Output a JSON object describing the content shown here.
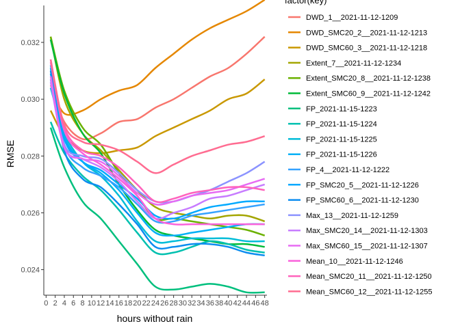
{
  "chart_data": {
    "type": "line",
    "xlabel": "hours without rain",
    "ylabel": "RMSE",
    "legend_title": "factor(key)",
    "legend_position": "right",
    "grid": false,
    "xlim": [
      -0.5,
      48.5
    ],
    "ylim": [
      0.0231,
      0.0333
    ],
    "x_ticks": [
      0,
      2,
      4,
      6,
      8,
      10,
      12,
      14,
      16,
      18,
      20,
      22,
      24,
      26,
      28,
      30,
      32,
      34,
      36,
      38,
      40,
      42,
      44,
      46,
      48
    ],
    "y_ticks": [
      0.024,
      0.026,
      0.028,
      0.03,
      0.032
    ],
    "y_tick_labels": [
      "0.024",
      "0.026",
      "0.028",
      "0.030",
      "0.032"
    ],
    "knots_x": [
      1,
      4,
      8,
      12,
      16,
      20,
      24,
      28,
      32,
      36,
      40,
      44,
      48
    ],
    "series": [
      {
        "name": "DWD_1__2021-11-12-1209",
        "color": "#F8766D",
        "values": [
          0.0305,
          0.0292,
          0.0286,
          0.0288,
          0.0292,
          0.0293,
          0.0297,
          0.03,
          0.0304,
          0.0308,
          0.0311,
          0.0316,
          0.0322
        ]
      },
      {
        "name": "DWD_SMC20_2__2021-11-12-1213",
        "color": "#E58700",
        "values": [
          0.0304,
          0.0295,
          0.0296,
          0.03,
          0.0303,
          0.0305,
          0.0311,
          0.0316,
          0.0321,
          0.0325,
          0.0328,
          0.0331,
          0.0335
        ]
      },
      {
        "name": "DWD_SMC60_3__2021-11-12-1218",
        "color": "#C99800",
        "values": [
          0.0296,
          0.0287,
          0.0282,
          0.0281,
          0.0282,
          0.0283,
          0.0287,
          0.029,
          0.0293,
          0.0296,
          0.03,
          0.0302,
          0.0307
        ]
      },
      {
        "name": "Extent_7__2021-11-12-1234",
        "color": "#A3A500",
        "values": [
          0.0322,
          0.03,
          0.0288,
          0.0282,
          0.0275,
          0.0268,
          0.0262,
          0.026,
          0.0259,
          0.0258,
          0.0259,
          0.0259,
          0.0257
        ]
      },
      {
        "name": "Extent_SMC20_8__2021-11-12-1238",
        "color": "#6BB100",
        "values": [
          0.0322,
          0.0303,
          0.029,
          0.0284,
          0.0274,
          0.0266,
          0.0258,
          0.0258,
          0.0257,
          0.0256,
          0.0255,
          0.0254,
          0.0252
        ]
      },
      {
        "name": "Extent_SMC60_9__2021-11-12-1242",
        "color": "#00BA38",
        "values": [
          0.0321,
          0.0302,
          0.0288,
          0.0281,
          0.027,
          0.0261,
          0.0254,
          0.0252,
          0.0251,
          0.025,
          0.0249,
          0.0249,
          0.0248
        ]
      },
      {
        "name": "FP_2021-11-15-1223",
        "color": "#00BF7D",
        "values": [
          0.029,
          0.0276,
          0.0264,
          0.0258,
          0.025,
          0.0242,
          0.0234,
          0.0233,
          0.0234,
          0.0235,
          0.0234,
          0.0232,
          0.0232
        ]
      },
      {
        "name": "FP_2021-11-15-1224",
        "color": "#00C0AF",
        "values": [
          0.0292,
          0.0281,
          0.0273,
          0.0268,
          0.0261,
          0.0253,
          0.0246,
          0.0246,
          0.0248,
          0.025,
          0.0249,
          0.0247,
          0.0246
        ]
      },
      {
        "name": "FP_2021-11-15-1225",
        "color": "#00BCD8",
        "values": [
          0.0304,
          0.0288,
          0.0278,
          0.0273,
          0.0266,
          0.0257,
          0.025,
          0.025,
          0.0251,
          0.0251,
          0.0251,
          0.025,
          0.025
        ]
      },
      {
        "name": "FP_2021-11-15-1226",
        "color": "#00B0F6",
        "values": [
          0.0309,
          0.0287,
          0.0278,
          0.0274,
          0.0268,
          0.026,
          0.0253,
          0.0252,
          0.0253,
          0.0254,
          0.0255,
          0.0256,
          0.0256
        ]
      },
      {
        "name": "FP_4__2021-11-12-1222",
        "color": "#35A2FF",
        "values": [
          0.0312,
          0.0284,
          0.0276,
          0.0273,
          0.0269,
          0.0263,
          0.0257,
          0.0257,
          0.0259,
          0.026,
          0.0261,
          0.0262,
          0.0263
        ]
      },
      {
        "name": "FP_SMC20_5__2021-11-12-1226",
        "color": "#00A9FF",
        "values": [
          0.0311,
          0.0286,
          0.0278,
          0.0275,
          0.027,
          0.0265,
          0.0259,
          0.0258,
          0.026,
          0.0262,
          0.0263,
          0.0264,
          0.0264
        ]
      },
      {
        "name": "FP_SMC60_6__2021-11-12-1230",
        "color": "#0C8DF0",
        "values": [
          0.031,
          0.0282,
          0.0272,
          0.0269,
          0.0263,
          0.0256,
          0.0248,
          0.0248,
          0.0249,
          0.0249,
          0.0248,
          0.0246,
          0.0245
        ]
      },
      {
        "name": "Max_13__2021-11-12-1259",
        "color": "#8B93FF",
        "values": [
          0.0307,
          0.0284,
          0.028,
          0.0279,
          0.0274,
          0.0268,
          0.0264,
          0.0264,
          0.0266,
          0.0268,
          0.0271,
          0.0274,
          0.0278
        ]
      },
      {
        "name": "Max_SMC20_14__2021-11-12-1303",
        "color": "#C77CFF",
        "values": [
          0.0306,
          0.0283,
          0.0279,
          0.0276,
          0.0271,
          0.0264,
          0.0258,
          0.026,
          0.0262,
          0.0265,
          0.0266,
          0.0268,
          0.027
        ]
      },
      {
        "name": "Max_SMC60_15__2021-11-12-1307",
        "color": "#E76BF3",
        "values": [
          0.0308,
          0.0283,
          0.0279,
          0.0278,
          0.0273,
          0.0267,
          0.0263,
          0.0264,
          0.0266,
          0.0267,
          0.0268,
          0.027,
          0.0272
        ]
      },
      {
        "name": "Mean_10__2021-11-12-1246",
        "color": "#FA62DB",
        "values": [
          0.0314,
          0.0289,
          0.0281,
          0.0277,
          0.0272,
          0.0266,
          0.0258,
          0.0256,
          0.0256,
          0.0256,
          0.0256,
          0.0256,
          0.0256
        ]
      },
      {
        "name": "Mean_SMC20_11__2021-11-12-1250",
        "color": "#FF62BC",
        "values": [
          0.0313,
          0.029,
          0.0282,
          0.028,
          0.0276,
          0.027,
          0.0264,
          0.0265,
          0.0267,
          0.0268,
          0.0269,
          0.0269,
          0.0268
        ]
      },
      {
        "name": "Mean_SMC60_12__2021-11-12-1255",
        "color": "#FF6C91",
        "values": [
          0.0314,
          0.0291,
          0.0285,
          0.0284,
          0.0282,
          0.0278,
          0.0274,
          0.0277,
          0.028,
          0.0282,
          0.0284,
          0.0285,
          0.0287
        ]
      }
    ]
  }
}
